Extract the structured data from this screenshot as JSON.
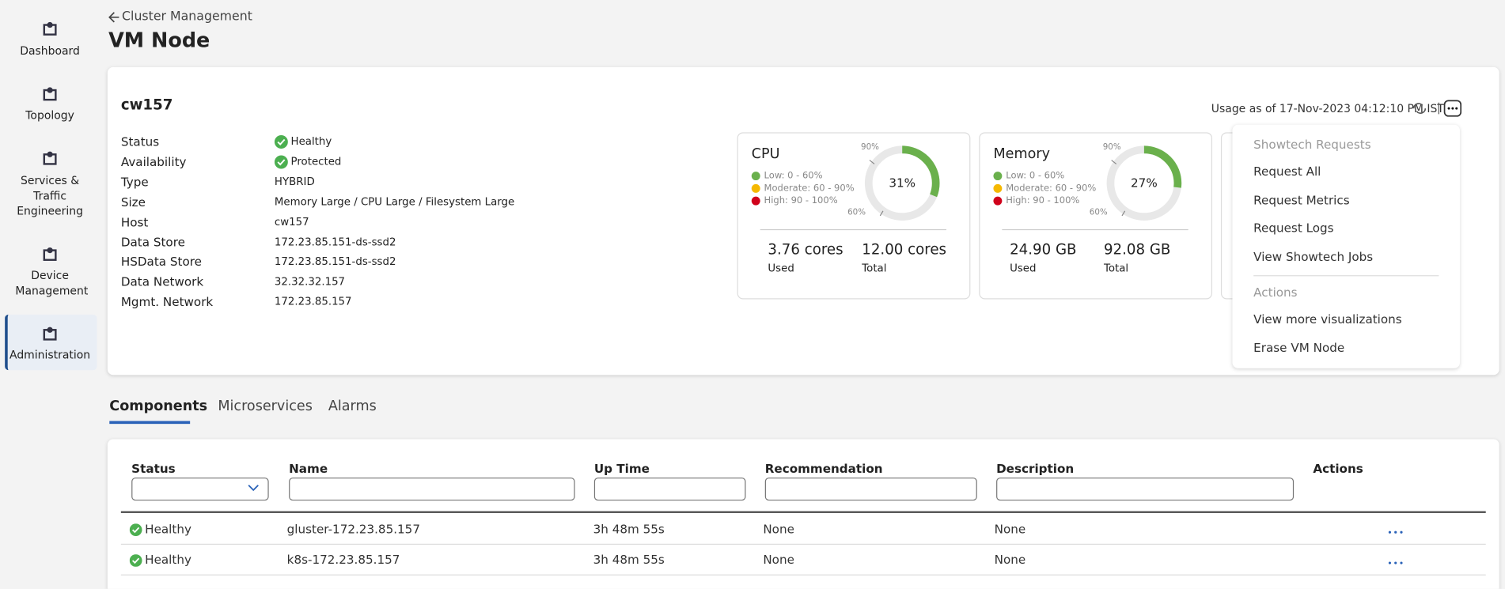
{
  "sidebar": [
    {
      "label": "Dashboard"
    },
    {
      "label": "Topology"
    },
    {
      "label": "Services & Traffic Engineering"
    },
    {
      "label": "Device Management"
    },
    {
      "label": "Administration"
    }
  ],
  "header": {
    "back": "Cluster Management",
    "title": "VM Node"
  },
  "node": {
    "name": "cw157",
    "properties": [
      {
        "label": "Status",
        "value": "Healthy"
      },
      {
        "label": "Availability",
        "value": "Protected"
      },
      {
        "label": "Type",
        "value": "HYBRID"
      },
      {
        "label": "Size",
        "value": "Memory Large / CPU Large / Filesystem Large"
      },
      {
        "label": "Host",
        "value": "cw157"
      },
      {
        "label": "Data Store",
        "value": "172.23.85.151-ds-ssd2"
      },
      {
        "label": "HSData Store",
        "value": "172.23.85.151-ds-ssd2"
      },
      {
        "label": "Data Network",
        "value": "32.32.32.157"
      },
      {
        "label": "Mgmt. Network",
        "value": "172.23.85.157"
      }
    ]
  },
  "usage_as_of": "Usage as of 17-Nov-2023 04:12:10 PM IST",
  "gauges": [
    {
      "title": "CPU",
      "legend": [
        "Low: 0 - 60%",
        "Moderate: 60 - 90%",
        "High: 90 - 100%"
      ],
      "usage": {
        "value": 31,
        "label": "31%"
      },
      "scale_labels": [
        "90%",
        "60%"
      ],
      "used": "3.76 cores",
      "used_label": "Used",
      "total": "12.00 cores",
      "total_label": "Total"
    },
    {
      "title": "Memory",
      "legend": [
        "Low: 0 - 60%",
        "Moderate: 60 - 90%",
        "High: 90 - 100%"
      ],
      "usage": {
        "value": 27,
        "label": "27%"
      },
      "scale_labels": [
        "90%",
        "60%"
      ],
      "used": "24.90 GB",
      "used_label": "Used",
      "total": "92.08 GB",
      "total_label": "Total"
    }
  ],
  "menu": {
    "sections": [
      {
        "heading": "Showtech Requests",
        "items": [
          "Request All",
          "Request Metrics",
          "Request Logs",
          "View Showtech Jobs"
        ]
      },
      {
        "heading": "Actions",
        "items": [
          "View more visualizations",
          "Erase VM Node"
        ]
      }
    ]
  },
  "tabs": [
    "Components",
    "Microservices",
    "Alarms"
  ],
  "table": {
    "columns": [
      "Status",
      "Name",
      "Up Time",
      "Recommendation",
      "Description",
      "Actions"
    ],
    "rows": [
      [
        "Healthy",
        "gluster-172.23.85.157",
        "3h 48m 55s",
        "None",
        "None"
      ],
      [
        "Healthy",
        "k8s-172.23.85.157",
        "3h 48m 55s",
        "None",
        "None"
      ]
    ]
  }
}
